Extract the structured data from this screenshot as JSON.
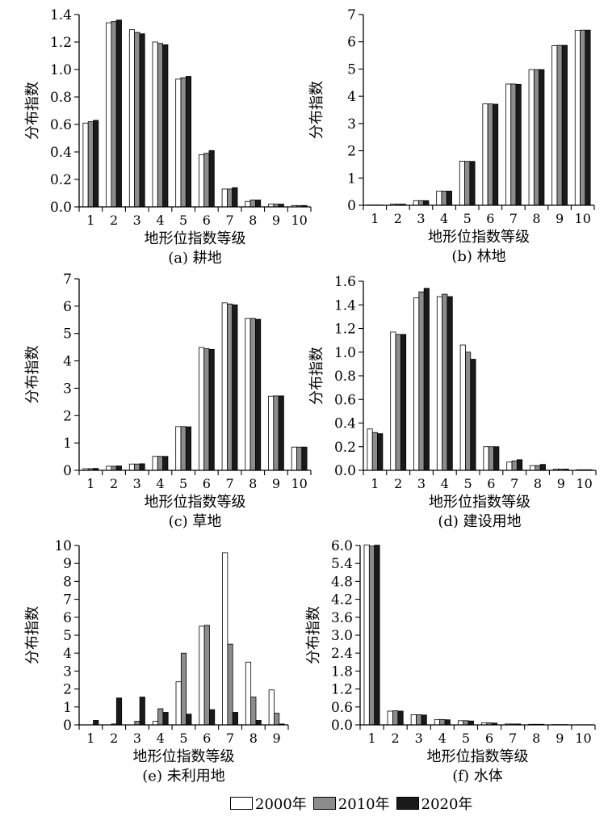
{
  "colors": {
    "2000": "#ffffff",
    "2010": "#8c8c8c",
    "2020": "#1a1a1a",
    "axis": "#000000"
  },
  "legend": [
    {
      "name": "2000年",
      "color": "#ffffff"
    },
    {
      "name": "2010年",
      "color": "#8c8c8c"
    },
    {
      "name": "2020年",
      "color": "#1a1a1a"
    }
  ],
  "chart_data": [
    {
      "type": "bar",
      "caption": "(a) 耕地",
      "xlabel": "地形位指数等级",
      "ylabel": "分布指数",
      "categories": [
        "1",
        "2",
        "3",
        "4",
        "5",
        "6",
        "7",
        "8",
        "9",
        "10"
      ],
      "ylim": [
        0,
        1.4
      ],
      "yticks": [
        "0.0",
        "0.2",
        "0.4",
        "0.6",
        "0.8",
        "1.0",
        "1.2",
        "1.4"
      ],
      "series": [
        {
          "name": "2000年",
          "values": [
            0.61,
            1.34,
            1.29,
            1.2,
            0.93,
            0.38,
            0.13,
            0.04,
            0.02,
            0.01
          ]
        },
        {
          "name": "2010年",
          "values": [
            0.62,
            1.35,
            1.27,
            1.19,
            0.94,
            0.39,
            0.13,
            0.05,
            0.02,
            0.01
          ]
        },
        {
          "name": "2020年",
          "values": [
            0.63,
            1.36,
            1.26,
            1.18,
            0.95,
            0.41,
            0.14,
            0.05,
            0.02,
            0.01
          ]
        }
      ]
    },
    {
      "type": "bar",
      "caption": "(b) 林地",
      "xlabel": "地形位指数等级",
      "ylabel": "分布指数",
      "categories": [
        "1",
        "2",
        "3",
        "4",
        "5",
        "6",
        "7",
        "8",
        "9",
        "10"
      ],
      "ylim": [
        0,
        7
      ],
      "yticks": [
        "0",
        "1",
        "2",
        "3",
        "4",
        "5",
        "6",
        "7"
      ],
      "series": [
        {
          "name": "2000年",
          "values": [
            0.01,
            0.04,
            0.17,
            0.52,
            1.62,
            3.72,
            4.45,
            4.98,
            5.86,
            6.42
          ]
        },
        {
          "name": "2010年",
          "values": [
            0.01,
            0.04,
            0.17,
            0.52,
            1.61,
            3.72,
            4.45,
            4.98,
            5.87,
            6.43
          ]
        },
        {
          "name": "2020年",
          "values": [
            0.01,
            0.04,
            0.17,
            0.52,
            1.61,
            3.71,
            4.44,
            4.98,
            5.87,
            6.43
          ]
        }
      ]
    },
    {
      "type": "bar",
      "caption": "(c) 草地",
      "xlabel": "地形位指数等级",
      "ylabel": "分布指数",
      "categories": [
        "1",
        "2",
        "3",
        "4",
        "5",
        "6",
        "7",
        "8",
        "9",
        "10"
      ],
      "ylim": [
        0,
        7
      ],
      "yticks": [
        "0",
        "1",
        "2",
        "3",
        "4",
        "5",
        "6",
        "7"
      ],
      "series": [
        {
          "name": "2000年",
          "values": [
            0.06,
            0.15,
            0.23,
            0.51,
            1.6,
            4.49,
            6.12,
            5.55,
            2.71,
            0.85
          ]
        },
        {
          "name": "2010年",
          "values": [
            0.06,
            0.15,
            0.23,
            0.51,
            1.6,
            4.45,
            6.08,
            5.55,
            2.72,
            0.85
          ]
        },
        {
          "name": "2020年",
          "values": [
            0.07,
            0.16,
            0.24,
            0.51,
            1.59,
            4.42,
            6.05,
            5.52,
            2.72,
            0.85
          ]
        }
      ]
    },
    {
      "type": "bar",
      "caption": "(d) 建设用地",
      "xlabel": "地形位指数等级",
      "ylabel": "分布指数",
      "categories": [
        "1",
        "2",
        "3",
        "4",
        "5",
        "6",
        "7",
        "8",
        "9",
        "10"
      ],
      "ylim": [
        0,
        1.6
      ],
      "yticks": [
        "0.0",
        "0.2",
        "0.4",
        "0.6",
        "0.8",
        "1.0",
        "1.2",
        "1.4",
        "1.6"
      ],
      "series": [
        {
          "name": "2000年",
          "values": [
            0.35,
            1.17,
            1.46,
            1.47,
            1.06,
            0.2,
            0.07,
            0.04,
            0.01,
            0.005
          ]
        },
        {
          "name": "2010年",
          "values": [
            0.32,
            1.15,
            1.51,
            1.49,
            1.0,
            0.2,
            0.08,
            0.04,
            0.01,
            0.005
          ]
        },
        {
          "name": "2020年",
          "values": [
            0.31,
            1.15,
            1.54,
            1.47,
            0.94,
            0.2,
            0.09,
            0.05,
            0.01,
            0.005
          ]
        }
      ]
    },
    {
      "type": "bar",
      "caption": "(e) 未利用地",
      "xlabel": "地形位指数等级",
      "ylabel": "分布指数",
      "categories": [
        "1",
        "2",
        "3",
        "4",
        "5",
        "6",
        "7",
        "8",
        "9"
      ],
      "ylim": [
        0,
        10
      ],
      "yticks": [
        "0",
        "1",
        "2",
        "3",
        "4",
        "5",
        "6",
        "7",
        "8",
        "9",
        "10"
      ],
      "series": [
        {
          "name": "2000年",
          "values": [
            0.0,
            0.0,
            0.0,
            0.2,
            2.4,
            5.5,
            9.6,
            3.5,
            1.95
          ]
        },
        {
          "name": "2010年",
          "values": [
            0.0,
            0.05,
            0.2,
            0.9,
            4.0,
            5.55,
            4.5,
            1.55,
            0.65
          ]
        },
        {
          "name": "2020年",
          "values": [
            0.25,
            1.5,
            1.55,
            0.7,
            0.6,
            0.85,
            0.7,
            0.25,
            0.05
          ]
        }
      ]
    },
    {
      "type": "bar",
      "caption": "(f) 水体",
      "xlabel": "地形位指数等级",
      "ylabel": "分布指数",
      "categories": [
        "1",
        "2",
        "3",
        "4",
        "5",
        "6",
        "7",
        "8",
        "9",
        "10"
      ],
      "ylim": [
        0,
        6.0
      ],
      "yticks": [
        "0.0",
        "0.6",
        "1.2",
        "1.8",
        "2.4",
        "3.0",
        "3.6",
        "4.2",
        "4.8",
        "5.4",
        "6.0"
      ],
      "series": [
        {
          "name": "2000年",
          "values": [
            6.02,
            0.46,
            0.34,
            0.18,
            0.14,
            0.07,
            0.03,
            0.02,
            0.01,
            0.005
          ]
        },
        {
          "name": "2010年",
          "values": [
            5.98,
            0.47,
            0.34,
            0.18,
            0.14,
            0.07,
            0.03,
            0.02,
            0.01,
            0.005
          ]
        },
        {
          "name": "2020年",
          "values": [
            6.01,
            0.46,
            0.33,
            0.17,
            0.13,
            0.06,
            0.03,
            0.02,
            0.01,
            0.005
          ]
        }
      ]
    }
  ]
}
